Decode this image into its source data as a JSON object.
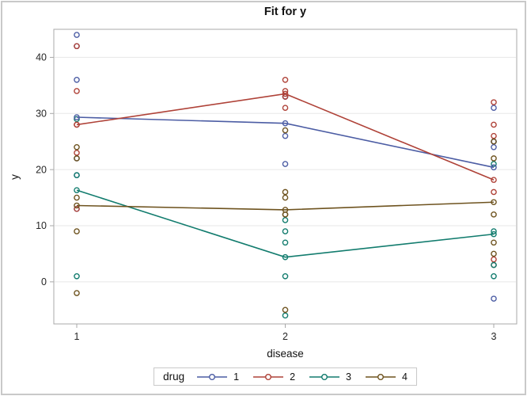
{
  "window": {
    "background": "#ffffff",
    "border_color": "#c9c9c9",
    "frame_color": "#a8a8a8",
    "grid_color": "#e7e7e7",
    "tick_text_color": "#262626"
  },
  "chart_data": {
    "type": "line",
    "subtype": "interaction-fit-plot-with-observed-scatter",
    "title": "Fit for y",
    "xlabel": "disease",
    "ylabel": "y",
    "categories": [
      "1",
      "2",
      "3"
    ],
    "y_ticks": [
      0,
      10,
      20,
      30,
      40
    ],
    "ylim": [
      -7.5,
      45
    ],
    "grid": "horizontal, light gray, at y ticks",
    "legend": {
      "title": "drug",
      "position": "bottom-outside-framed"
    },
    "marker": "open-circle",
    "series": [
      {
        "name": "1",
        "color": "#4c5da4",
        "fitted_means": [
          29.333,
          28.25,
          20.4
        ],
        "observations": [
          [
            42,
            44,
            36,
            13,
            19,
            22
          ],
          [
            33,
            26,
            33,
            21
          ],
          [
            31,
            -3,
            25,
            25,
            24
          ]
        ]
      },
      {
        "name": "2",
        "color": "#af4238",
        "fitted_means": [
          28.0,
          33.5,
          18.167
        ],
        "observations": [
          [
            28,
            23,
            34,
            42,
            13
          ],
          [
            34,
            33,
            31,
            36
          ],
          [
            3,
            26,
            28,
            32,
            4,
            16
          ]
        ]
      },
      {
        "name": "3",
        "color": "#127c6e",
        "fitted_means": [
          16.333,
          4.4,
          8.5
        ],
        "observations": [
          [
            1,
            29,
            19
          ],
          [
            11,
            9,
            7,
            1,
            -6
          ],
          [
            21,
            1,
            9,
            3
          ]
        ]
      },
      {
        "name": "4",
        "color": "#6e531f",
        "fitted_means": [
          13.6,
          12.833,
          14.2
        ],
        "observations": [
          [
            24,
            9,
            22,
            -2,
            15
          ],
          [
            27,
            12,
            12,
            -5,
            16,
            15
          ],
          [
            22,
            7,
            25,
            5,
            12
          ]
        ]
      }
    ]
  }
}
